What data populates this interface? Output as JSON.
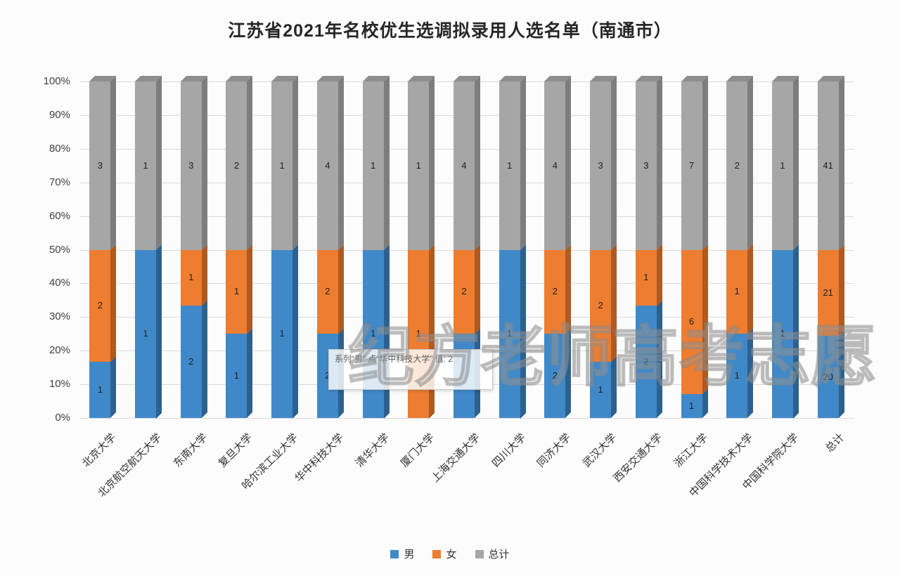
{
  "title": "江苏省2021年名校优生选调拟录用人选名单（南通市）",
  "watermark": "纪方老师高考志愿",
  "tooltip": {
    "text": "系列“男” 点“华中科技大学” 值: 2"
  },
  "legend": [
    {
      "label": "男",
      "color": "#4089C9"
    },
    {
      "label": "女",
      "color": "#ED7D31"
    },
    {
      "label": "总计",
      "color": "#A6A6A6"
    }
  ],
  "chart_data": {
    "type": "bar",
    "subtype": "100-percent-stacked-3d-column",
    "title": "江苏省2021年名校优生选调拟录用人选名单（南通市）",
    "xlabel": "",
    "ylabel": "",
    "ylim": [
      0,
      100
    ],
    "grid": true,
    "legend_position": "bottom",
    "top_face_color": "#8E8E8E",
    "categories": [
      "北京大学",
      "北京航空航天大学",
      "东南大学",
      "复旦大学",
      "哈尔滨工业大学",
      "华中科技大学",
      "清华大学",
      "厦门大学",
      "上海交通大学",
      "四川大学",
      "同济大学",
      "武汉大学",
      "西安交通大学",
      "浙江大学",
      "中国科学技术大学",
      "中国科学院大学",
      "总计"
    ],
    "series": [
      {
        "name": "男",
        "color": "#4089C9",
        "side_color": "#2C618F",
        "values": [
          1,
          1,
          2,
          1,
          1,
          2,
          1,
          0,
          2,
          1,
          2,
          1,
          2,
          1,
          1,
          1,
          20
        ]
      },
      {
        "name": "女",
        "color": "#ED7D31",
        "side_color": "#AE5A21",
        "values": [
          2,
          0,
          1,
          1,
          0,
          2,
          0,
          1,
          2,
          0,
          2,
          2,
          1,
          6,
          1,
          0,
          21
        ]
      },
      {
        "name": "总计",
        "color": "#A6A6A6",
        "side_color": "#7D7D7D",
        "values": [
          3,
          1,
          3,
          2,
          1,
          4,
          1,
          1,
          4,
          1,
          4,
          3,
          3,
          7,
          2,
          1,
          41
        ]
      }
    ],
    "y_axis": {
      "min": 0,
      "max": 100,
      "ticks": [
        "100%",
        "90%",
        "80%",
        "70%",
        "60%",
        "50%",
        "40%",
        "30%",
        "20%",
        "10%",
        "0%"
      ]
    }
  }
}
